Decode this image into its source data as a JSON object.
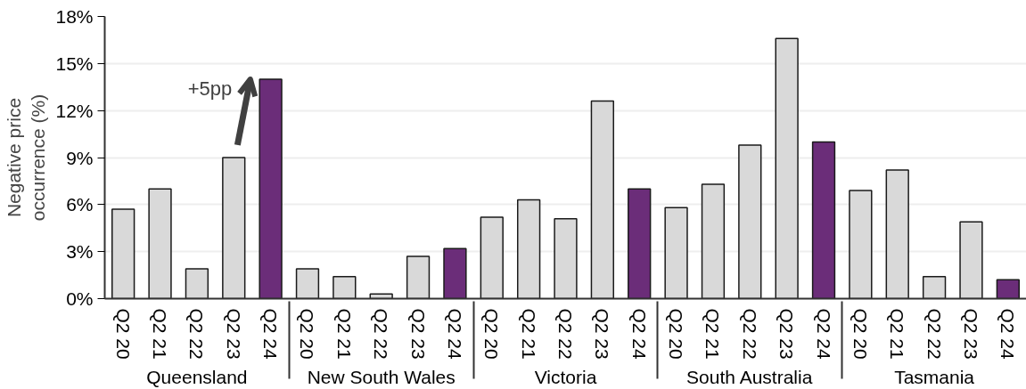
{
  "chart_data": {
    "type": "bar",
    "ylabel": "Negative price occurrence (%)",
    "categories": [
      "Q2 20",
      "Q2 21",
      "Q2 22",
      "Q2 23",
      "Q2 24",
      "Q2 20",
      "Q2 21",
      "Q2 22",
      "Q2 23",
      "Q2 24",
      "Q2 20",
      "Q2 21",
      "Q2 22",
      "Q2 23",
      "Q2 24",
      "Q2 20",
      "Q2 21",
      "Q2 22",
      "Q2 23",
      "Q2 24",
      "Q2 20",
      "Q2 21",
      "Q2 22",
      "Q2 23",
      "Q2 24"
    ],
    "values": [
      5.7,
      7.0,
      1.9,
      9.0,
      14.0,
      1.9,
      1.4,
      0.3,
      2.7,
      3.2,
      5.2,
      6.3,
      5.1,
      12.6,
      7.0,
      5.8,
      7.3,
      9.8,
      16.6,
      10.0,
      6.9,
      8.2,
      1.4,
      4.9,
      1.2
    ],
    "colors": [
      "#d9d9d9",
      "#d9d9d9",
      "#d9d9d9",
      "#d9d9d9",
      "#6b2d79",
      "#d9d9d9",
      "#d9d9d9",
      "#d9d9d9",
      "#d9d9d9",
      "#6b2d79",
      "#d9d9d9",
      "#d9d9d9",
      "#d9d9d9",
      "#d9d9d9",
      "#6b2d79",
      "#d9d9d9",
      "#d9d9d9",
      "#d9d9d9",
      "#d9d9d9",
      "#6b2d79",
      "#d9d9d9",
      "#d9d9d9",
      "#d9d9d9",
      "#d9d9d9",
      "#6b2d79"
    ],
    "ylim": [
      0,
      18
    ],
    "yticks": [
      {
        "value": 0,
        "label": "0%"
      },
      {
        "value": 3,
        "label": "3%"
      },
      {
        "value": 6,
        "label": "6%"
      },
      {
        "value": 9,
        "label": "9%"
      },
      {
        "value": 12,
        "label": "12%"
      },
      {
        "value": 15,
        "label": "15%"
      },
      {
        "value": 18,
        "label": "18%"
      }
    ],
    "grid": "y",
    "annotations": [
      {
        "text": "+5pp",
        "x": "Q2 24",
        "y": 14.0
      },
      "Queensland",
      "New South Wales",
      "Victoria",
      "South Australia",
      "Tasmania"
    ]
  }
}
